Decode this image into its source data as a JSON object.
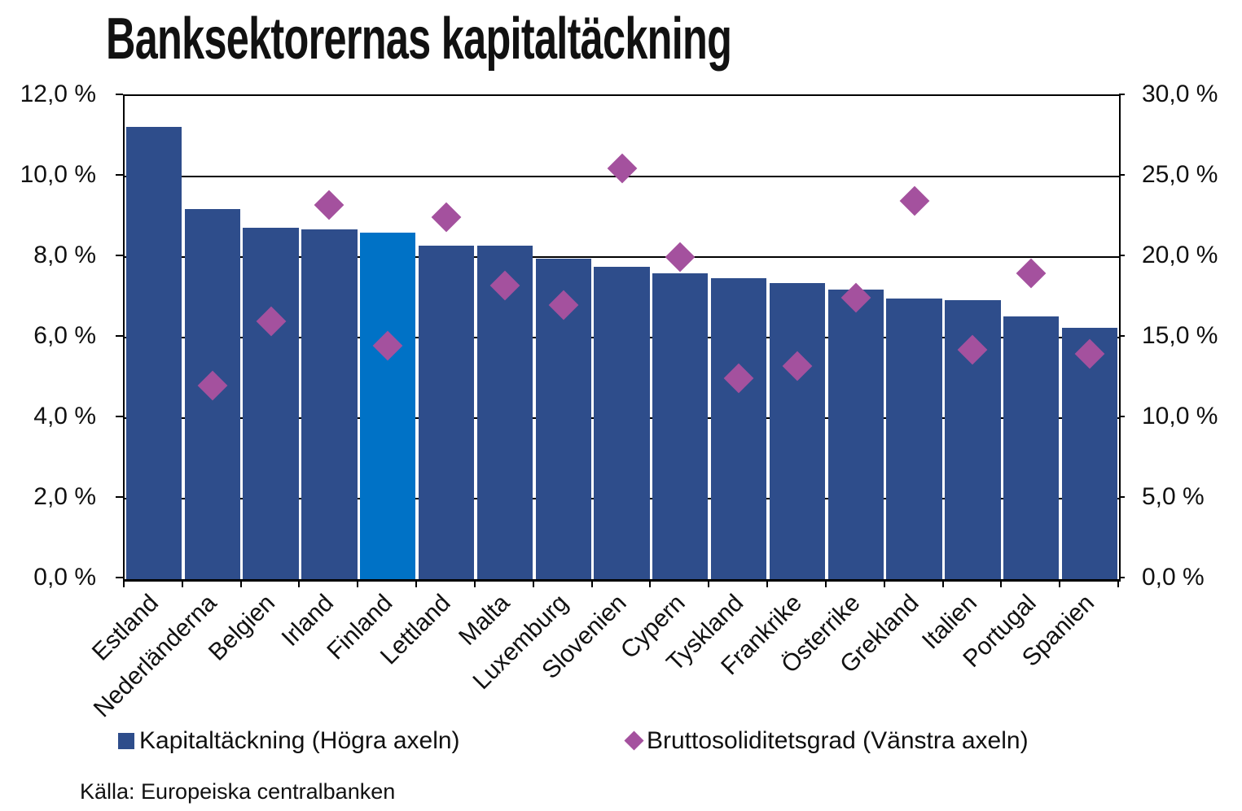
{
  "title": "Banksektorernas kapitaltäckning",
  "source": "Källa: Europeiska centralbanken",
  "legend": {
    "items": [
      {
        "label": "Kapitaltäckning (Högra axeln)",
        "marker": "square",
        "color": "#2E4D8B"
      },
      {
        "label": "Bruttosoliditetsgrad (Vänstra axeln)",
        "marker": "diamond",
        "color": "#A4519E"
      }
    ],
    "position": "bottom"
  },
  "colors": {
    "bar": "#2E4D8B",
    "bar_highlight": "#0072C6",
    "marker": "#A4519E",
    "grid": "#000000",
    "text": "#111111"
  },
  "chart_data": {
    "type": "bar",
    "subtype": "bar-and-scatter-combo",
    "title": "Banksektorernas kapitaltäckning",
    "categories": [
      "Estland",
      "Nederländerna",
      "Belgien",
      "Irland",
      "Finland",
      "Lettland",
      "Malta",
      "Luxemburg",
      "Slovenien",
      "Cypern",
      "Tyskland",
      "Frankrike",
      "Österrike",
      "Grekland",
      "Italien",
      "Portugal",
      "Spanien"
    ],
    "series": [
      {
        "name": "Kapitaltäckning (Högra axeln)",
        "type": "bar",
        "axis": "right",
        "color": "#2E4D8B",
        "highlight": {
          "category": "Finland",
          "color": "#0072C6"
        },
        "values": [
          28.1,
          23.0,
          21.8,
          21.7,
          21.5,
          20.7,
          20.7,
          19.9,
          19.4,
          19.0,
          18.7,
          18.4,
          18.0,
          17.4,
          17.3,
          16.3,
          15.6
        ]
      },
      {
        "name": "Bruttosoliditetsgrad (Vänstra axeln)",
        "type": "scatter",
        "marker": "diamond",
        "axis": "left",
        "color": "#A4519E",
        "values": [
          null,
          4.8,
          6.4,
          9.3,
          5.8,
          9.0,
          7.3,
          6.8,
          10.2,
          8.0,
          5.0,
          5.3,
          7.0,
          9.4,
          5.7,
          7.6,
          5.6
        ]
      }
    ],
    "left_axis": {
      "min": 0,
      "max": 12,
      "step": 2,
      "tick_labels": [
        "12,0 %",
        "10,0 %",
        "8,0 %",
        "6,0 %",
        "4,0 %",
        "2,0 %",
        "0,0 %"
      ]
    },
    "right_axis": {
      "min": 0,
      "max": 30,
      "step": 5,
      "tick_labels": [
        "30,0 %",
        "25,0 %",
        "20,0 %",
        "15,0 %",
        "10,0 %",
        "5,0 %",
        "0,0 %"
      ]
    },
    "grid": true,
    "legend_position": "bottom",
    "xlabel": "",
    "ylabel_left": "",
    "ylabel_right": ""
  }
}
